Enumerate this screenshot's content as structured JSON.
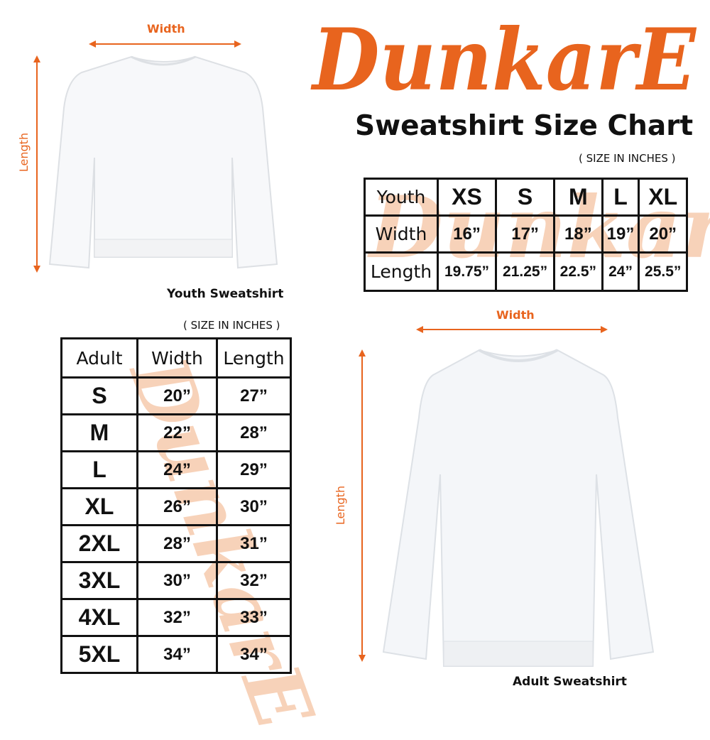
{
  "brand": {
    "logo_text": "DunkarE",
    "color": "#e8641e"
  },
  "title": "Sweatshirt Size Chart",
  "youth": {
    "unit_note": "( SIZE IN INCHES )",
    "caption": "Youth Sweatshirt",
    "width_label": "Width",
    "length_label": "Length",
    "table": {
      "header": [
        "Youth",
        "XS",
        "S",
        "M",
        "L",
        "XL"
      ],
      "rows": [
        [
          "Width",
          "16”",
          "17”",
          "18”",
          "19”",
          "20”"
        ],
        [
          "Length",
          "19.75”",
          "21.25”",
          "22.5”",
          "24”",
          "25.5”"
        ]
      ]
    }
  },
  "adult": {
    "unit_note": "( SIZE IN INCHES )",
    "caption": "Adult Sweatshirt",
    "width_label": "Width",
    "length_label": "Length",
    "table": {
      "header": [
        "Adult",
        "Width",
        "Length"
      ],
      "rows": [
        [
          "S",
          "20”",
          "27”"
        ],
        [
          "M",
          "22”",
          "28”"
        ],
        [
          "L",
          "24”",
          "29”"
        ],
        [
          "XL",
          "26”",
          "30”"
        ],
        [
          "2XL",
          "28”",
          "31”"
        ],
        [
          "3XL",
          "30”",
          "32”"
        ],
        [
          "4XL",
          "32”",
          "33”"
        ],
        [
          "5XL",
          "34”",
          "34”"
        ]
      ]
    }
  }
}
